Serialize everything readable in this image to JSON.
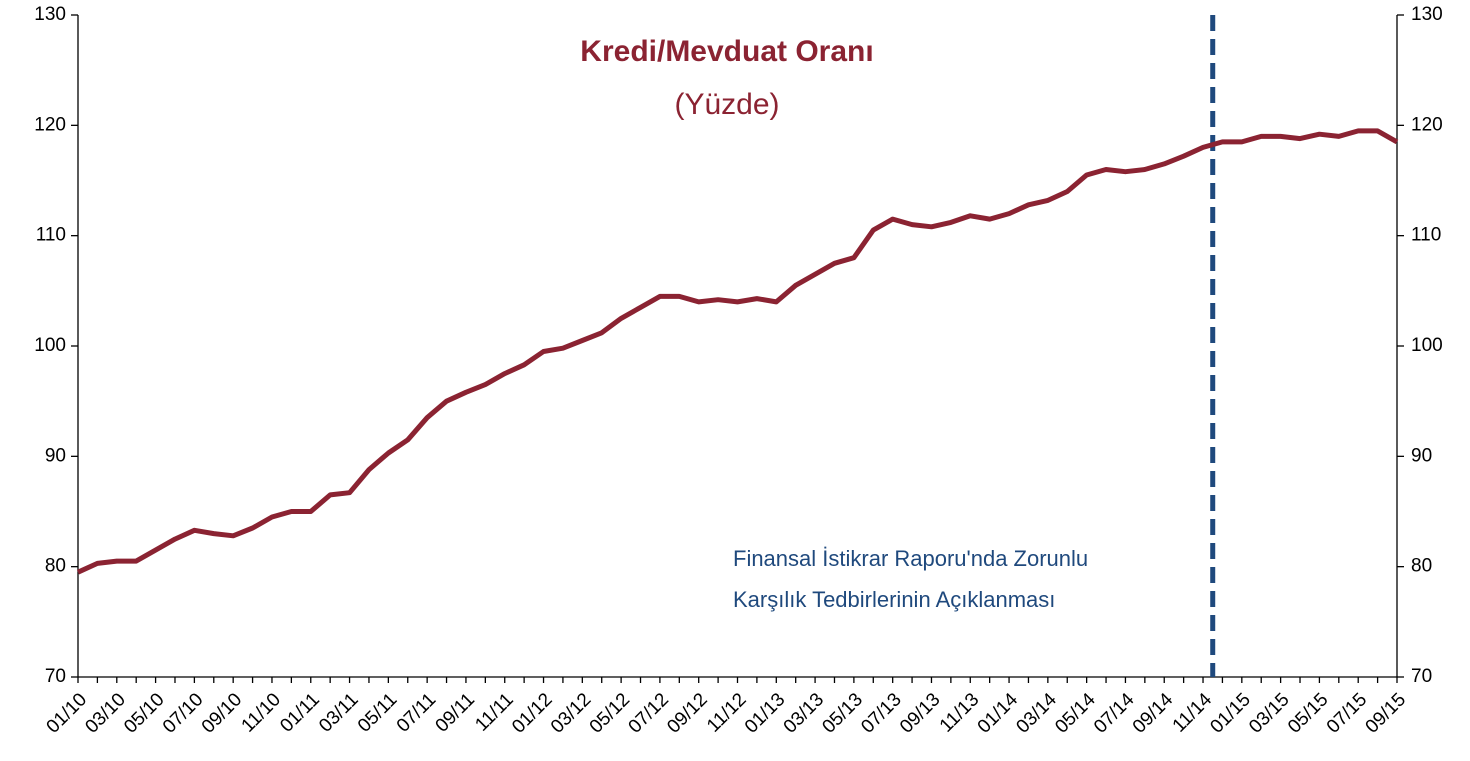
{
  "chart_data": {
    "type": "line",
    "title": "Kredi/Mevduat Oranı",
    "subtitle": "(Yüzde)",
    "categories": [
      "01/10",
      null,
      "03/10",
      null,
      "05/10",
      null,
      "07/10",
      null,
      "09/10",
      null,
      "11/10",
      null,
      "01/11",
      null,
      "03/11",
      null,
      "05/11",
      null,
      "07/11",
      null,
      "09/11",
      null,
      "11/11",
      null,
      "01/12",
      null,
      "03/12",
      null,
      "05/12",
      null,
      "07/12",
      null,
      "09/12",
      null,
      "11/12",
      null,
      "01/13",
      null,
      "03/13",
      null,
      "05/13",
      null,
      "07/13",
      null,
      "09/13",
      null,
      "11/13",
      null,
      "01/14",
      null,
      "03/14",
      null,
      "05/14",
      null,
      "07/14",
      null,
      "09/14",
      null,
      "11/14",
      null,
      "01/15",
      null,
      "03/15",
      null,
      "05/15",
      null,
      "07/15",
      null,
      "09/15"
    ],
    "series": [
      {
        "color": "#8b2332",
        "values": [
          79.5,
          80.3,
          80.5,
          80.5,
          81.5,
          82.5,
          83.3,
          83,
          82.8,
          83.5,
          84.5,
          85,
          85,
          86.5,
          86.7,
          88.8,
          90.3,
          91.5,
          93.5,
          95,
          95.8,
          96.5,
          97.5,
          98.3,
          99.5,
          99.8,
          100.5,
          101.2,
          102.5,
          103.5,
          104.5,
          104.5,
          104,
          104.2,
          104,
          104.3,
          104,
          105.5,
          106.5,
          107.5,
          108,
          110.5,
          111.5,
          111,
          110.8,
          111.2,
          111.8,
          111.5,
          112,
          112.8,
          113.2,
          114,
          115.5,
          116,
          115.8,
          116,
          116.5,
          117.2,
          118,
          118.5,
          118.5,
          119,
          119,
          118.8,
          119.2,
          119,
          119.5,
          119.5,
          118.5
        ]
      }
    ],
    "ylim": [
      70,
      130
    ],
    "yticks": [
      70,
      80,
      90,
      100,
      110,
      120,
      130
    ],
    "y2lim": [
      70,
      130
    ],
    "y2ticks": [
      70,
      80,
      90,
      100,
      110,
      120,
      130
    ],
    "vline": {
      "x": 58.5,
      "color": "#1f497d"
    },
    "annotation": [
      "Finansal İstikrar Raporu'nda Zorunlu",
      "Karşılık Tedbirlerinin Açıklanması"
    ]
  }
}
